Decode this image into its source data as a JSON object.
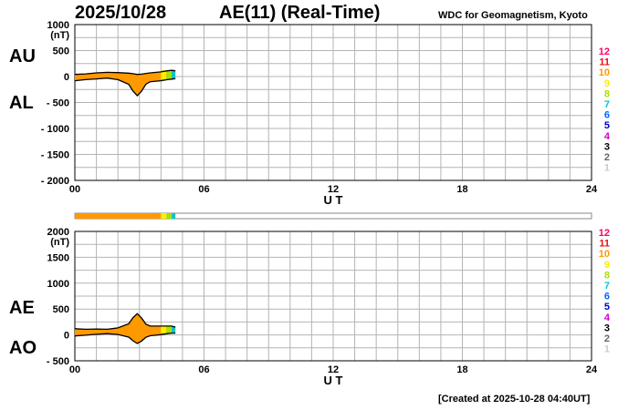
{
  "header": {
    "date": "2025/10/28",
    "title": "AE(11) (Real-Time)",
    "institution": "WDC for Geomagnetism, Kyoto"
  },
  "footer": {
    "created": "[Created at 2025-10-28 04:40UT]"
  },
  "hour_labels": [
    {
      "hour": 0,
      "label": "00"
    },
    {
      "hour": 6,
      "label": "06"
    },
    {
      "hour": 12,
      "label": "12"
    },
    {
      "hour": 18,
      "label": "18"
    },
    {
      "hour": 24,
      "label": "24"
    }
  ],
  "station_levels": [
    "12",
    "11",
    "10",
    "9",
    "8",
    "7",
    "6",
    "5",
    "4",
    "3",
    "2",
    "1"
  ],
  "station_colors": [
    "#ff0066",
    "#e81010",
    "#ff9900",
    "#ffee00",
    "#a8e000",
    "#00c8c8",
    "#0066ff",
    "#0000cc",
    "#cc00cc",
    "#000000",
    "#666666",
    "#cccccc"
  ],
  "fill_color": "#ff9900",
  "station_bar": {
    "type": "bar",
    "segments": [
      {
        "start_hour": 0.0,
        "end_hour": 4.0,
        "level": "10"
      },
      {
        "start_hour": 4.0,
        "end_hour": 4.25,
        "level": "9"
      },
      {
        "start_hour": 4.25,
        "end_hour": 4.5,
        "level": "8"
      },
      {
        "start_hour": 4.5,
        "end_hour": 4.67,
        "level": "7"
      }
    ]
  },
  "chart_data": [
    {
      "type": "area",
      "panel": "AU/AL",
      "unit": "(nT)",
      "ylim": [
        -2000,
        1000
      ],
      "yticks": [
        1000,
        500,
        0,
        -500,
        -1000,
        -1500,
        -2000
      ],
      "ytick_labels": [
        "1000",
        "500",
        "0",
        "- 500",
        "- 1000",
        "- 1500",
        "- 2000"
      ],
      "series_labels": [
        "AU",
        "AL"
      ],
      "xlabel": "U T",
      "xlim": [
        0,
        24
      ],
      "grid": true,
      "x": [
        0,
        0.5,
        1,
        1.5,
        2,
        2.5,
        2.7,
        2.9,
        3.1,
        3.3,
        3.5,
        4,
        4.3,
        4.5,
        4.67
      ],
      "series": [
        {
          "name": "AU",
          "values": [
            40,
            50,
            70,
            80,
            75,
            65,
            55,
            40,
            45,
            60,
            70,
            90,
            110,
            120,
            110
          ]
        },
        {
          "name": "AL",
          "values": [
            -80,
            -60,
            -45,
            -30,
            -60,
            -150,
            -280,
            -370,
            -280,
            -150,
            -100,
            -80,
            -60,
            -50,
            -40
          ]
        }
      ]
    },
    {
      "type": "area",
      "panel": "AE/AO",
      "unit": "(nT)",
      "ylim": [
        -500,
        2000
      ],
      "yticks": [
        2000,
        1500,
        1000,
        500,
        0,
        -500
      ],
      "ytick_labels": [
        "2000",
        "1500",
        "1000",
        "500",
        "0",
        "- 500"
      ],
      "series_labels": [
        "AE",
        "AO"
      ],
      "xlabel": "U T",
      "xlim": [
        0,
        24
      ],
      "grid": true,
      "x": [
        0,
        0.5,
        1,
        1.5,
        2,
        2.5,
        2.7,
        2.9,
        3.1,
        3.3,
        3.5,
        4,
        4.3,
        4.5,
        4.67
      ],
      "series": [
        {
          "name": "AE",
          "values": [
            120,
            110,
            115,
            110,
            135,
            215,
            335,
            410,
            325,
            210,
            170,
            170,
            170,
            170,
            150
          ]
        },
        {
          "name": "AO",
          "values": [
            -20,
            -5,
            12,
            25,
            8,
            -42,
            -112,
            -165,
            -118,
            -45,
            -15,
            5,
            25,
            35,
            35
          ]
        }
      ]
    }
  ]
}
